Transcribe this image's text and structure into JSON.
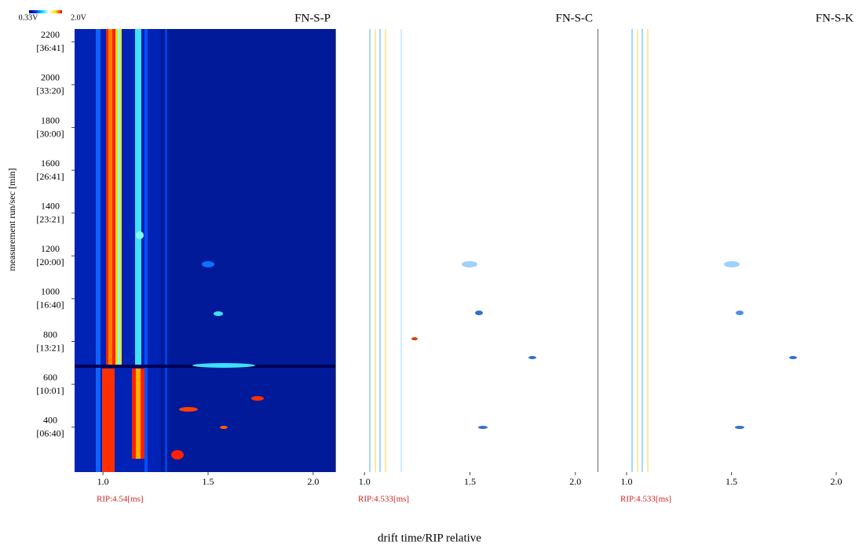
{
  "chart_data": [
    {
      "type": "heatmap",
      "title": "FN-S-P",
      "annotation": "RIP:4.54[ms]",
      "ylabel": "measurement run/sec [min]",
      "colorbar": {
        "min_label": "0.33V",
        "max_label": "2.0V",
        "colors": [
          "#00007a",
          "#0030ff",
          "#00e0ff",
          "#ffffff",
          "#ffe000",
          "#ff0000"
        ]
      },
      "xlim": [
        0.865,
        2.105
      ],
      "xticks": [
        {
          "value": 1,
          "label": "1.0"
        },
        1.5,
        {
          "value": 2,
          "label": "2.0"
        }
      ],
      "ylim": [
        190,
        2260
      ],
      "yticks": [
        2200,
        2000,
        1800,
        1600,
        1400,
        1200,
        1000,
        800,
        600,
        400
      ],
      "ytick_times": [
        "[36:41]",
        "[33:20]",
        "[30:00]",
        "[26:41]",
        "[23:21]",
        "[20:00]",
        "[16:40]",
        "[13:21]",
        "[10:01]",
        "[06:40]"
      ]
    },
    {
      "type": "heatmap",
      "title": "FN-S-C",
      "annotation": "RIP:4.533[ms]",
      "xlabel": "drift time/RIP relative",
      "xlim": [
        0.865,
        2.105
      ],
      "xticks": [
        {
          "value": 1,
          "label": "1.0"
        },
        1.5,
        {
          "value": 2,
          "label": "2.0"
        }
      ]
    },
    {
      "type": "heatmap",
      "title": "FN-S-K",
      "annotation": "RIP:4.533[ms]",
      "xlim": [
        0.865,
        2.105
      ],
      "xticks": [
        {
          "value": 1,
          "label": "1.0"
        },
        1.5,
        {
          "value": 2,
          "label": "2.0"
        }
      ]
    }
  ]
}
